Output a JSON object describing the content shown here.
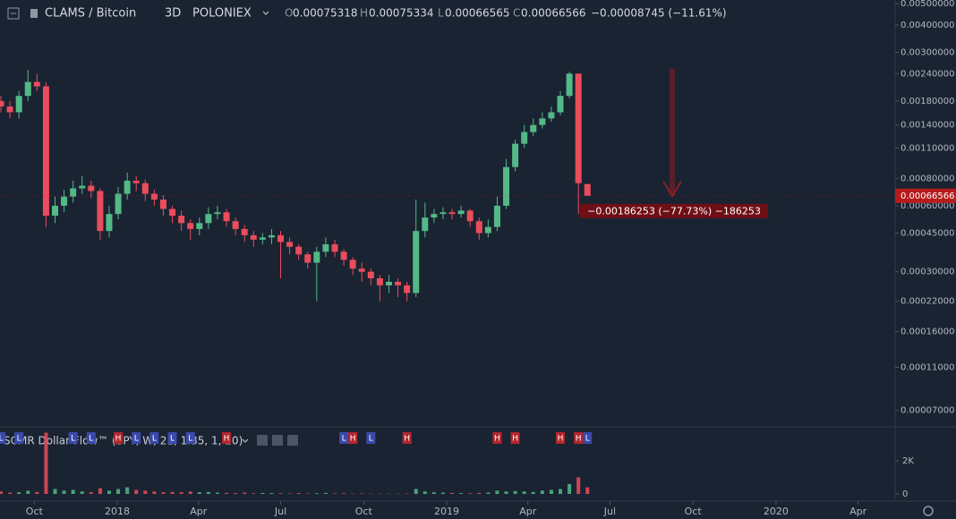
{
  "chart_data": {
    "type": "candlestick",
    "title": "CLAMS / Bitcoin",
    "interval": "3D",
    "exchange": "POLONIEX",
    "ohlc_labels": [
      "O",
      "H",
      "L",
      "C"
    ],
    "change": "−0.00008745 (−11.61%)",
    "x": [
      "2017-08-25",
      "2017-09-04",
      "2017-09-14",
      "2017-09-24",
      "2017-10-04",
      "2017-10-14",
      "2017-10-24",
      "2017-11-03",
      "2017-11-13",
      "2017-11-23",
      "2017-12-03",
      "2017-12-13",
      "2017-12-23",
      "2018-01-02",
      "2018-01-12",
      "2018-01-22",
      "2018-02-01",
      "2018-02-11",
      "2018-02-21",
      "2018-03-03",
      "2018-03-13",
      "2018-03-23",
      "2018-04-02",
      "2018-04-12",
      "2018-04-22",
      "2018-05-02",
      "2018-05-12",
      "2018-05-22",
      "2018-06-01",
      "2018-06-11",
      "2018-06-21",
      "2018-07-01",
      "2018-07-11",
      "2018-07-21",
      "2018-07-31",
      "2018-08-10",
      "2018-08-20",
      "2018-08-30",
      "2018-09-09",
      "2018-09-19",
      "2018-09-29",
      "2018-10-09",
      "2018-10-19",
      "2018-10-29",
      "2018-11-08",
      "2018-11-18",
      "2018-11-28",
      "2018-12-08",
      "2018-12-18",
      "2018-12-28",
      "2019-01-07",
      "2019-01-17",
      "2019-01-27",
      "2019-02-06",
      "2019-02-16",
      "2019-02-26",
      "2019-03-08",
      "2019-03-18",
      "2019-03-28",
      "2019-04-07",
      "2019-04-17",
      "2019-04-27",
      "2019-05-07",
      "2019-05-17",
      "2019-05-27",
      "2019-06-06"
    ],
    "open": [
      0.0018,
      0.0017,
      0.0016,
      0.0019,
      0.0022,
      0.0021,
      0.00054,
      0.0006,
      0.00066,
      0.00072,
      0.00074,
      0.0007,
      0.00046,
      0.00055,
      0.00068,
      0.00078,
      0.00076,
      0.00068,
      0.00064,
      0.00058,
      0.00054,
      0.0005,
      0.00047,
      0.0005,
      0.00055,
      0.00056,
      0.00051,
      0.00047,
      0.00044,
      0.00042,
      0.00043,
      0.00044,
      0.00041,
      0.00039,
      0.00036,
      0.00033,
      0.00037,
      0.0004,
      0.00037,
      0.00034,
      0.00031,
      0.0003,
      0.00028,
      0.00026,
      0.00027,
      0.00026,
      0.00024,
      0.00046,
      0.00053,
      0.00055,
      0.00056,
      0.00055,
      0.00057,
      0.00051,
      0.00045,
      0.00048,
      0.0006,
      0.0009,
      0.00115,
      0.0013,
      0.0014,
      0.0015,
      0.0016,
      0.0019,
      0.0024,
      0.00075318
    ],
    "high": [
      0.0019,
      0.0018,
      0.002,
      0.0025,
      0.0024,
      0.0022,
      0.00066,
      0.00071,
      0.00078,
      0.00082,
      0.00078,
      0.00072,
      0.0006,
      0.00073,
      0.00085,
      0.00082,
      0.00079,
      0.00071,
      0.00067,
      0.0006,
      0.00057,
      0.00052,
      0.00053,
      0.00059,
      0.0006,
      0.00058,
      0.00053,
      0.00049,
      0.00046,
      0.00045,
      0.00047,
      0.00046,
      0.00043,
      0.0004,
      0.00037,
      0.00039,
      0.00043,
      0.00042,
      0.00038,
      0.00035,
      0.00033,
      0.00031,
      0.00029,
      0.00029,
      0.00028,
      0.00027,
      0.00064,
      0.00062,
      0.00058,
      0.00059,
      0.00058,
      0.0006,
      0.00058,
      0.00053,
      0.00052,
      0.00066,
      0.00098,
      0.0012,
      0.0014,
      0.0015,
      0.0016,
      0.0017,
      0.002,
      0.00245,
      0.0024,
      0.00075334
    ],
    "low": [
      0.0016,
      0.0015,
      0.0015,
      0.0018,
      0.002,
      0.00048,
      0.0005,
      0.00056,
      0.00062,
      0.00068,
      0.00065,
      0.00042,
      0.00043,
      0.00052,
      0.00064,
      0.0007,
      0.00063,
      0.0006,
      0.00054,
      0.0005,
      0.00046,
      0.00042,
      0.00044,
      0.00047,
      0.00052,
      0.00048,
      0.00044,
      0.00041,
      0.00039,
      0.0004,
      0.0004,
      0.00028,
      0.00036,
      0.00034,
      0.00031,
      0.00022,
      0.00035,
      0.00035,
      0.00032,
      0.00029,
      0.00027,
      0.00026,
      0.00022,
      0.00024,
      0.00023,
      0.00022,
      0.00023,
      0.00043,
      0.0005,
      0.00052,
      0.00052,
      0.00053,
      0.00048,
      0.00042,
      0.00043,
      0.00046,
      0.00058,
      0.00086,
      0.0011,
      0.00125,
      0.00135,
      0.00145,
      0.00155,
      0.00185,
      0.00055,
      0.00066565
    ],
    "close": [
      0.0017,
      0.0016,
      0.0019,
      0.0022,
      0.0021,
      0.00054,
      0.0006,
      0.00066,
      0.00072,
      0.00074,
      0.0007,
      0.00046,
      0.00055,
      0.00068,
      0.00078,
      0.00076,
      0.00068,
      0.00064,
      0.00058,
      0.00054,
      0.0005,
      0.00047,
      0.0005,
      0.00055,
      0.00056,
      0.00051,
      0.00047,
      0.00044,
      0.00042,
      0.00043,
      0.00044,
      0.00041,
      0.00039,
      0.00036,
      0.00033,
      0.00037,
      0.0004,
      0.00037,
      0.00034,
      0.00031,
      0.0003,
      0.00028,
      0.00026,
      0.00027,
      0.00026,
      0.00024,
      0.00046,
      0.00053,
      0.00055,
      0.00056,
      0.00055,
      0.00057,
      0.00051,
      0.00045,
      0.00048,
      0.0006,
      0.0009,
      0.00115,
      0.0013,
      0.0014,
      0.0015,
      0.0016,
      0.0019,
      0.0024,
      0.00076,
      0.00066566
    ],
    "up_color": "#53b987",
    "down_color": "#eb4d5c",
    "log_scale": true,
    "grid": false,
    "ylim": [
      6e-05,
      0.0052
    ],
    "yticks": [
      {
        "value": 0.005,
        "label": "0.00500000"
      },
      {
        "value": 0.004,
        "label": "0.00400000"
      },
      {
        "value": 0.003,
        "label": "0.00300000"
      },
      {
        "value": 0.0024,
        "label": "0.00240000"
      },
      {
        "value": 0.0018,
        "label": "0.00180000"
      },
      {
        "value": 0.0014,
        "label": "0.00140000"
      },
      {
        "value": 0.0011,
        "label": "0.00110000"
      },
      {
        "value": 0.0008,
        "label": "0.00080000"
      },
      {
        "value": 0.0006,
        "label": "0.00060000"
      },
      {
        "value": 0.00045,
        "label": "0.00045000"
      },
      {
        "value": 0.0003,
        "label": "0.00030000"
      },
      {
        "value": 0.00022,
        "label": "0.00022000"
      },
      {
        "value": 0.00016,
        "label": "0.00016000"
      },
      {
        "value": 0.00011,
        "label": "0.00011000"
      },
      {
        "value": 7e-05,
        "label": "0.00007000"
      }
    ],
    "xlim": [
      "2017-08-24",
      "2020-05-12"
    ],
    "xticks": [
      {
        "value": "2017-10-01",
        "label": "Oct"
      },
      {
        "value": "2018-01-01",
        "label": "2018"
      },
      {
        "value": "2018-04-01",
        "label": "Apr"
      },
      {
        "value": "2018-07-01",
        "label": "Jul"
      },
      {
        "value": "2018-10-01",
        "label": "Oct"
      },
      {
        "value": "2019-01-01",
        "label": "2019"
      },
      {
        "value": "2019-04-01",
        "label": "Apr"
      },
      {
        "value": "2019-07-01",
        "label": "Jul"
      },
      {
        "value": "2019-10-01",
        "label": "Oct"
      },
      {
        "value": "2020-01-01",
        "label": "2020"
      },
      {
        "value": "2020-04-01",
        "label": "Apr"
      }
    ],
    "measure": {
      "from": 0.00252819,
      "to": 0.00066566,
      "label": "−0.00186253 (−77.73%) −186253",
      "color": "#8b1f26"
    },
    "price_label_color": "#b71c1c",
    "flow": {
      "name": "SCMR Dollar Flow™ (SPY, W, 21, 1.35, 1, 20)",
      "values": [
        150,
        80,
        100,
        200,
        120,
        3700,
        300,
        200,
        250,
        150,
        100,
        350,
        200,
        300,
        400,
        250,
        200,
        150,
        100,
        120,
        100,
        150,
        100,
        120,
        80,
        60,
        50,
        80,
        40,
        60,
        50,
        40,
        30,
        50,
        30,
        40,
        60,
        30,
        40,
        20,
        30,
        20,
        20,
        15,
        20,
        25,
        300,
        150,
        100,
        80,
        60,
        50,
        40,
        60,
        80,
        200,
        150,
        180,
        150,
        120,
        200,
        250,
        300,
        600,
        1000,
        400
      ],
      "ylim": [
        0,
        4000
      ],
      "yticks": [
        0,
        {
          "value": 2000,
          "label": "2K"
        }
      ],
      "marker_colors": {
        "L": "#3949ab",
        "H": "#b3262d"
      },
      "markers": [
        {
          "x": "2017-08-25",
          "label": "L"
        },
        {
          "x": "2017-09-14",
          "label": "L"
        },
        {
          "x": "2017-11-13",
          "label": "L"
        },
        {
          "x": "2017-12-03",
          "label": "L"
        },
        {
          "x": "2018-01-02",
          "label": "H"
        },
        {
          "x": "2018-01-22",
          "label": "L"
        },
        {
          "x": "2018-02-11",
          "label": "L"
        },
        {
          "x": "2018-03-03",
          "label": "L"
        },
        {
          "x": "2018-03-23",
          "label": "L"
        },
        {
          "x": "2018-05-02",
          "label": "H"
        },
        {
          "x": "2018-09-09",
          "label": "L"
        },
        {
          "x": "2018-09-19",
          "label": "H"
        },
        {
          "x": "2018-10-09",
          "label": "L"
        },
        {
          "x": "2018-11-18",
          "label": "H"
        },
        {
          "x": "2019-02-26",
          "label": "H"
        },
        {
          "x": "2019-03-18",
          "label": "H"
        },
        {
          "x": "2019-05-07",
          "label": "H"
        },
        {
          "x": "2019-05-27",
          "label": "H"
        },
        {
          "x": "2019-06-06",
          "label": "L"
        }
      ]
    }
  }
}
